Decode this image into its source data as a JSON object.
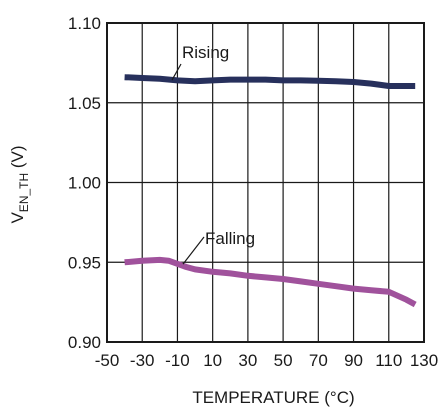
{
  "chart_data": {
    "type": "line",
    "xlabel": "TEMPERATURE (°C)",
    "ylabel": {
      "main": "V",
      "subscript": "EN_TH",
      "unit": " (V)"
    },
    "xlim": [
      -50,
      130
    ],
    "ylim": [
      0.9,
      1.1
    ],
    "x_ticks": [
      -50,
      -30,
      -10,
      10,
      30,
      50,
      70,
      90,
      110,
      130
    ],
    "x_tick_labels": [
      "-50",
      "-30",
      "-10",
      "10",
      "30",
      "50",
      "70",
      "90",
      "110",
      "130"
    ],
    "y_ticks": [
      0.9,
      0.95,
      1.0,
      1.05,
      1.1
    ],
    "y_tick_labels": [
      "0.90",
      "0.95",
      "1.00",
      "1.05",
      "1.10"
    ],
    "grid": true,
    "series": [
      {
        "name": "Rising",
        "color": "#27305c",
        "x": [
          -40,
          -30,
          -20,
          -10,
          0,
          10,
          20,
          30,
          40,
          50,
          60,
          70,
          80,
          90,
          100,
          110,
          120,
          125
        ],
        "values": [
          1.066,
          1.0655,
          1.065,
          1.064,
          1.0635,
          1.064,
          1.0645,
          1.0645,
          1.0645,
          1.064,
          1.064,
          1.0638,
          1.0635,
          1.063,
          1.062,
          1.0605,
          1.0605,
          1.0605
        ]
      },
      {
        "name": "Falling",
        "color": "#a0529c",
        "x": [
          -40,
          -30,
          -20,
          -15,
          -10,
          -5,
          0,
          10,
          20,
          30,
          40,
          50,
          60,
          70,
          80,
          90,
          100,
          110,
          120,
          125
        ],
        "values": [
          0.95,
          0.951,
          0.9515,
          0.951,
          0.949,
          0.947,
          0.9455,
          0.944,
          0.943,
          0.9415,
          0.9405,
          0.9395,
          0.938,
          0.9365,
          0.935,
          0.9335,
          0.9325,
          0.9315,
          0.9265,
          0.9235
        ]
      }
    ]
  }
}
